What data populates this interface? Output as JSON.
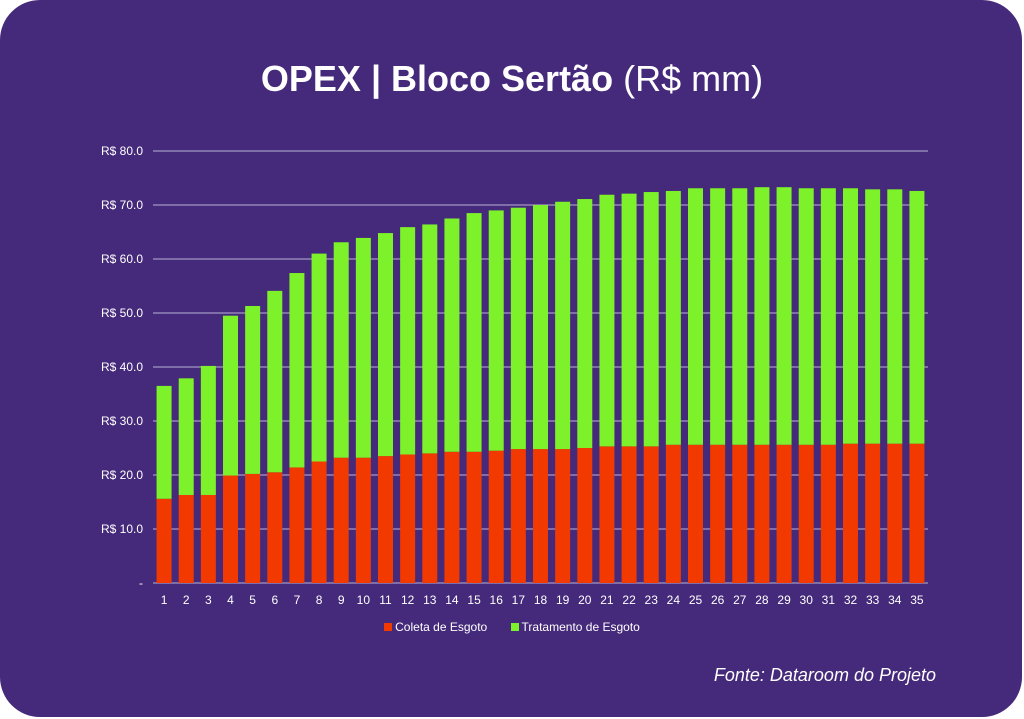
{
  "title": {
    "bold": "OPEX | Bloco Sertão",
    "light": "(R$ mm)"
  },
  "source": "Fonte: Dataroom do Projeto",
  "colors": {
    "background": "#45297a",
    "coleta": "#f23a00",
    "tratamento": "#7df22a",
    "grid": "#a597c4"
  },
  "chart_data": {
    "type": "bar",
    "stacked": true,
    "title": "OPEX | Bloco Sertão (R$ mm)",
    "xlabel": "",
    "ylabel": "",
    "ylim": [
      0,
      80
    ],
    "grid": true,
    "legend": "bottom",
    "yticks": [
      {
        "v": 0,
        "label": "-"
      },
      {
        "v": 10,
        "label": "R$ 10.0"
      },
      {
        "v": 20,
        "label": "R$ 20.0"
      },
      {
        "v": 30,
        "label": "R$ 30.0"
      },
      {
        "v": 40,
        "label": "R$ 40.0"
      },
      {
        "v": 50,
        "label": "R$ 50.0"
      },
      {
        "v": 60,
        "label": "R$ 60.0"
      },
      {
        "v": 70,
        "label": "R$ 70.0"
      },
      {
        "v": 80,
        "label": "R$ 80.0"
      }
    ],
    "categories": [
      "1",
      "2",
      "3",
      "4",
      "5",
      "6",
      "7",
      "8",
      "9",
      "10",
      "11",
      "12",
      "13",
      "14",
      "15",
      "16",
      "17",
      "18",
      "19",
      "20",
      "21",
      "22",
      "23",
      "24",
      "25",
      "26",
      "27",
      "28",
      "29",
      "30",
      "31",
      "32",
      "33",
      "34",
      "35"
    ],
    "series": [
      {
        "name": "Coleta de Esgoto",
        "color": "#f23a00",
        "values": [
          15.6,
          16.3,
          16.3,
          19.9,
          20.2,
          20.5,
          21.4,
          22.5,
          23.2,
          23.2,
          23.5,
          23.8,
          24.0,
          24.3,
          24.3,
          24.5,
          24.8,
          24.8,
          24.8,
          25.0,
          25.3,
          25.3,
          25.3,
          25.6,
          25.6,
          25.6,
          25.6,
          25.6,
          25.6,
          25.6,
          25.6,
          25.8,
          25.8,
          25.8,
          25.8
        ]
      },
      {
        "name": "Tratamento de Esgoto",
        "color": "#7df22a",
        "values": [
          20.9,
          21.6,
          23.9,
          29.6,
          31.1,
          33.6,
          36.0,
          38.5,
          39.9,
          40.7,
          41.3,
          42.1,
          42.4,
          43.2,
          44.2,
          44.5,
          44.7,
          45.2,
          45.8,
          46.1,
          46.6,
          46.8,
          47.1,
          47.0,
          47.5,
          47.5,
          47.5,
          47.7,
          47.7,
          47.5,
          47.5,
          47.3,
          47.1,
          47.1,
          46.8
        ]
      }
    ]
  }
}
